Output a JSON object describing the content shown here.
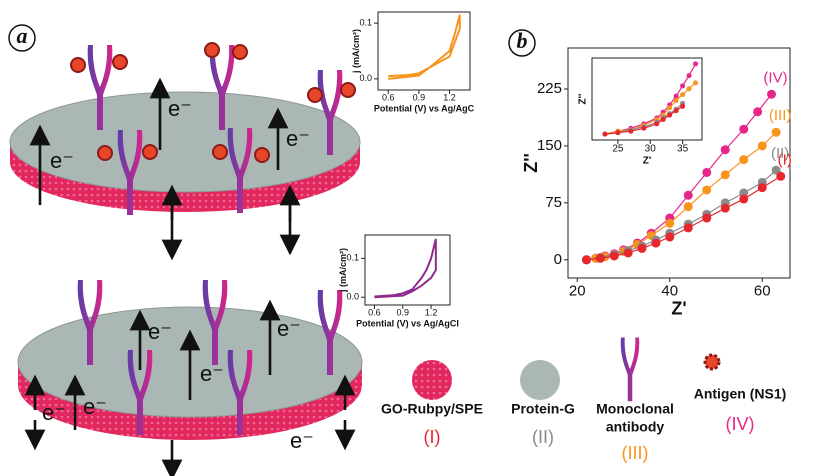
{
  "panel_labels": [
    "a",
    "b"
  ],
  "electron_label": "e⁻",
  "legend": [
    {
      "label": "GO-Rubpy/SPE",
      "numeral": "(I)"
    },
    {
      "label": "Protein-G",
      "numeral": "(II)"
    },
    {
      "label": [
        "Monoclonal",
        "antibody"
      ],
      "numeral": "(III)"
    },
    {
      "label": "Antigen (NS1)",
      "numeral": "(IV)"
    }
  ],
  "chart_data": [
    {
      "type": "line",
      "x_label": "Potential (V) vs Ag/AgC",
      "y_label": "j (mA/cm²)",
      "xlim": [
        0.5,
        1.4
      ],
      "xticks": [
        0.6,
        0.9,
        1.2
      ],
      "ylim": [
        -0.02,
        0.12
      ],
      "yticks": [
        {
          "value": 0,
          "label": "0.0"
        },
        {
          "value": 0.1,
          "label": "0.1"
        }
      ],
      "color": "#f7941d",
      "x": [
        0.6,
        0.8,
        0.9,
        1.0,
        1.1,
        1.2,
        1.25,
        1.3,
        1.3,
        1.2,
        1.1,
        1.0,
        0.9,
        0.6
      ],
      "values": [
        0.005,
        0.007,
        0.01,
        0.02,
        0.035,
        0.05,
        0.08,
        0.115,
        0.09,
        0.04,
        0.03,
        0.02,
        0.006,
        0.0
      ]
    },
    {
      "type": "line",
      "x_label": "Potential (V) vs Ag/AgCl",
      "y_label": "j (mA/cm²)",
      "xlim": [
        0.5,
        1.4
      ],
      "xticks": [
        0.6,
        0.9,
        1.2
      ],
      "ylim": [
        -0.02,
        0.16
      ],
      "yticks": [
        {
          "value": 0,
          "label": "0.0"
        },
        {
          "value": 0.1,
          "label": "0.1"
        }
      ],
      "color": "#8e2a8e",
      "x": [
        0.6,
        0.8,
        0.9,
        1.0,
        1.1,
        1.15,
        1.2,
        1.25,
        1.25,
        1.2,
        1.1,
        1.0,
        0.9,
        0.6
      ],
      "values": [
        0.002,
        0.005,
        0.01,
        0.02,
        0.05,
        0.07,
        0.1,
        0.15,
        0.07,
        0.05,
        0.03,
        0.015,
        0.004,
        0.0
      ]
    },
    {
      "type": "line",
      "x_label": "Z'",
      "y_label": "Z''",
      "markers": true,
      "xlim": [
        18,
        66
      ],
      "xticks": [
        20,
        40,
        60
      ],
      "ylim": [
        -24,
        279
      ],
      "yticks": [
        0,
        75,
        150,
        225
      ],
      "series": [
        {
          "name": "(IV)",
          "color": "#e6268a",
          "x": [
            22,
            24,
            26,
            28,
            30,
            33,
            36,
            40,
            44,
            48,
            52,
            56,
            59,
            62
          ],
          "values": [
            0,
            2,
            5,
            8,
            13,
            22,
            35,
            55,
            85,
            115,
            145,
            172,
            195,
            218
          ]
        },
        {
          "name": "(III)",
          "color": "#f7941d",
          "x": [
            22,
            24,
            26,
            28,
            30,
            33,
            36,
            40,
            44,
            48,
            52,
            56,
            60,
            63
          ],
          "values": [
            0,
            2,
            4,
            7,
            11,
            20,
            32,
            48,
            70,
            92,
            112,
            132,
            150,
            168
          ]
        },
        {
          "name": "(II)",
          "color": "#8a8a8a",
          "x": [
            22,
            25,
            28,
            31,
            34,
            37,
            40,
            44,
            48,
            52,
            56,
            60,
            63
          ],
          "values": [
            0,
            3,
            7,
            12,
            18,
            26,
            35,
            47,
            60,
            75,
            88,
            102,
            118
          ]
        },
        {
          "name": "(I)",
          "color": "#e8262d",
          "x": [
            22,
            25,
            28,
            31,
            34,
            37,
            40,
            44,
            48,
            52,
            56,
            60,
            64
          ],
          "values": [
            0,
            2,
            5,
            9,
            15,
            22,
            30,
            42,
            55,
            68,
            80,
            95,
            110
          ]
        }
      ]
    },
    {
      "type": "line",
      "x_label": "Z'",
      "y_label": "Z''",
      "markers": true,
      "xlim": [
        21,
        38
      ],
      "xticks": [
        25,
        30,
        35
      ],
      "ylim": [
        -4,
        52
      ],
      "series": [
        {
          "color": "#e6268a",
          "x": [
            23,
            25,
            27,
            29,
            31,
            32,
            33,
            34,
            35,
            36,
            37
          ],
          "values": [
            0,
            2,
            4,
            7,
            11,
            15,
            20,
            26,
            33,
            40,
            48
          ]
        },
        {
          "color": "#f7941d",
          "x": [
            23,
            25,
            27,
            29,
            31,
            32,
            33,
            34,
            35,
            36,
            37
          ],
          "values": [
            0,
            2,
            3,
            6,
            10,
            13,
            18,
            23,
            27,
            31,
            35
          ]
        },
        {
          "color": "#8a8a8a",
          "x": [
            23,
            25,
            27,
            29,
            31,
            32,
            33,
            34,
            35
          ],
          "values": [
            0,
            1,
            3,
            5,
            8,
            11,
            14,
            17,
            21
          ]
        },
        {
          "color": "#e8262d",
          "x": [
            23,
            25,
            27,
            29,
            31,
            32,
            33,
            34,
            35
          ],
          "values": [
            0,
            1,
            2,
            4,
            7,
            10,
            13,
            16,
            19
          ]
        }
      ]
    }
  ]
}
